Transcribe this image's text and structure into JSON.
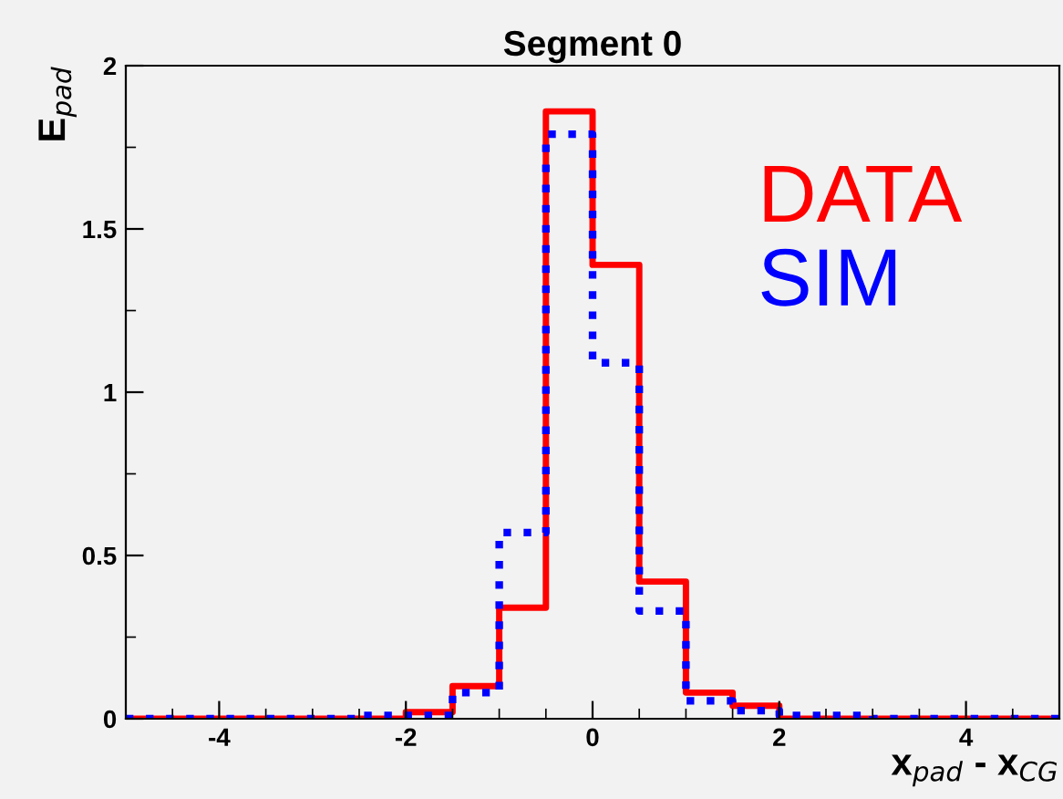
{
  "chart_data": {
    "type": "histogram",
    "title": "Segment 0",
    "xlabel": "x$_{pad}$ - x$_{CG}$",
    "ylabel": "E$_{pad}$",
    "bins": [
      -5,
      -4.5,
      -4,
      -3.5,
      -3,
      -2.5,
      -2,
      -1.5,
      -1,
      -0.5,
      0,
      0.5,
      1,
      1.5,
      2,
      2.5,
      3,
      3.5,
      4,
      4.5,
      5
    ],
    "series": [
      {
        "name": "DATA",
        "color": "#ff0000",
        "line_style": "solid",
        "values": [
          0,
          0,
          0,
          0,
          0,
          0,
          0.02,
          0.1,
          0.34,
          1.86,
          1.39,
          0.42,
          0.08,
          0.04,
          0,
          0,
          0,
          0,
          0,
          0
        ]
      },
      {
        "name": "SIM",
        "color": "#0000ff",
        "line_style": "dotted",
        "values": [
          0,
          0,
          0,
          0,
          0,
          0.01,
          0.01,
          0.08,
          0.57,
          1.79,
          1.09,
          0.33,
          0.055,
          0.025,
          0.01,
          0.01,
          0,
          0,
          0,
          0
        ]
      }
    ],
    "xlim": [
      -5,
      5
    ],
    "ylim": [
      0,
      2
    ],
    "xticks": [
      -4,
      -2,
      0,
      2,
      4
    ],
    "yticks": [
      0,
      0.5,
      1,
      1.5,
      2
    ],
    "grid": false,
    "legend": "top right"
  }
}
